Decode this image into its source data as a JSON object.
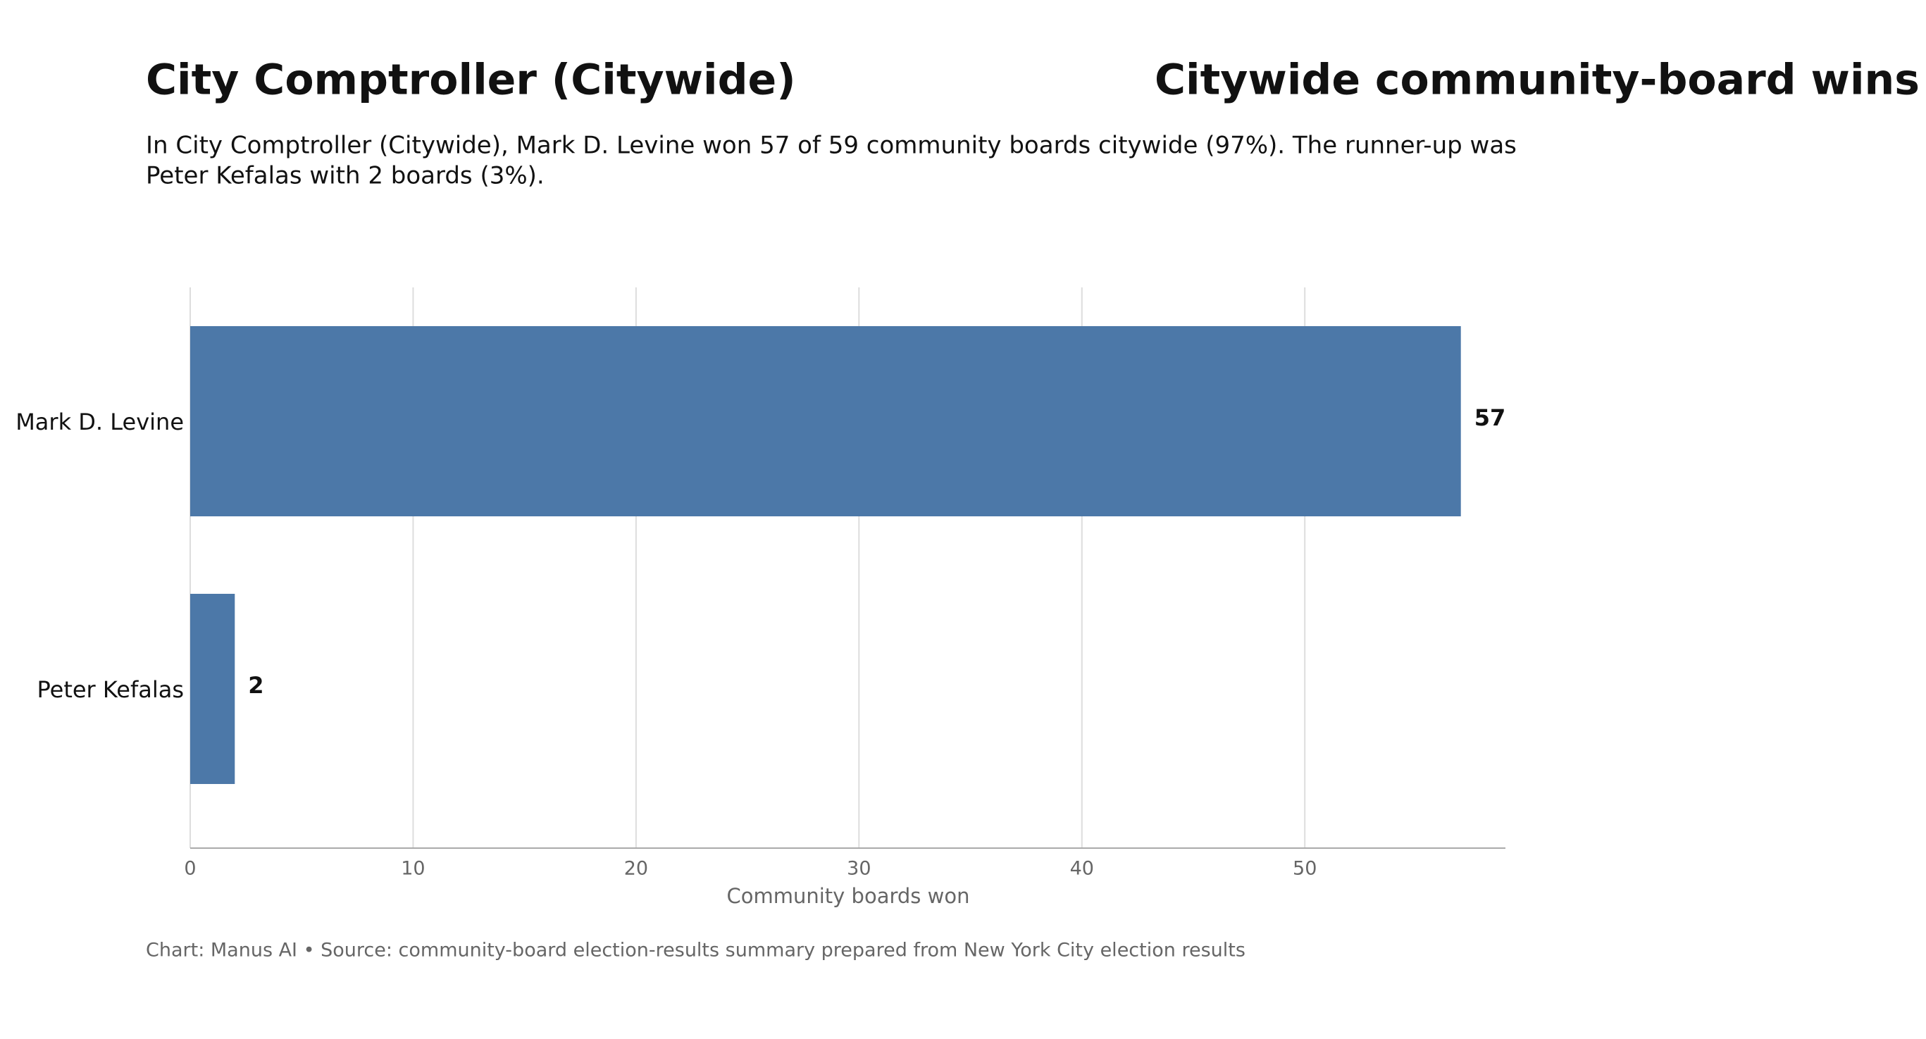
{
  "chart_data": {
    "type": "bar",
    "orientation": "horizontal",
    "title": "City Comptroller (Citywide)",
    "chart_title": "Citywide community-board wins",
    "subtitle": [
      "In City Comptroller (Citywide), Mark D. Levine won 57 of 59 community boards citywide (97%). The runner-up was",
      "Peter Kefalas with 2 boards (3%)."
    ],
    "categories": [
      "Mark D. Levine",
      "Peter Kefalas"
    ],
    "values": [
      57,
      2
    ],
    "color": "#4c78a8",
    "xlabel": "Community boards won",
    "xlim": [
      0,
      59
    ],
    "xticks": [
      0,
      10,
      20,
      30,
      40,
      50
    ],
    "grid": true,
    "footer": "Chart: Manus AI • Source: community-board election-results summary prepared from New York City election results"
  }
}
